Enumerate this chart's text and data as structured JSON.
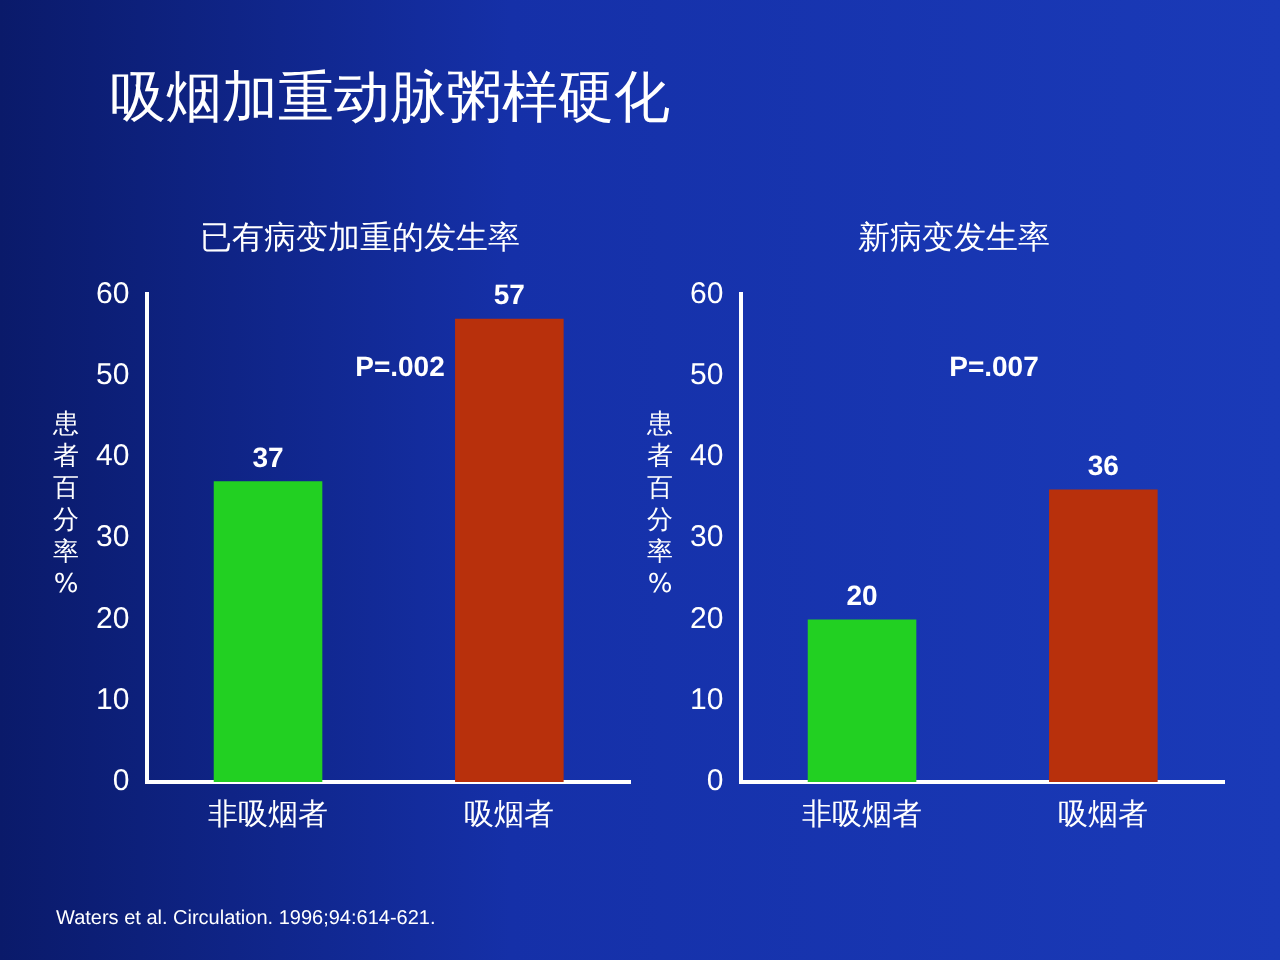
{
  "chart_data": [
    {
      "type": "bar",
      "title": "已有病变加重的发生率",
      "ylabel": "患者百分率%",
      "categories": [
        "非吸烟者",
        "吸烟者"
      ],
      "values": [
        37,
        57
      ],
      "colors": [
        "#22d022",
        "#b8300c"
      ],
      "ylim": [
        0,
        60
      ],
      "yticks": [
        0,
        10,
        20,
        30,
        40,
        50,
        60
      ],
      "grid": false,
      "legend": false,
      "data_labels": true,
      "annotations": [
        "吸烟加重动脉粥样硬化",
        "P=.002"
      ]
    },
    {
      "type": "bar",
      "title": "新病变发生率",
      "ylabel": "患者百分率%",
      "categories": [
        "非吸烟者",
        "吸烟者"
      ],
      "values": [
        20,
        36
      ],
      "colors": [
        "#22d022",
        "#b8300c"
      ],
      "ylim": [
        0,
        60
      ],
      "yticks": [
        0,
        10,
        20,
        30,
        40,
        50,
        60
      ],
      "grid": false,
      "legend": false,
      "data_labels": true,
      "annotations": [
        "P=.007",
        "Waters et al. Circulation. 1996;94:614-621."
      ]
    }
  ]
}
